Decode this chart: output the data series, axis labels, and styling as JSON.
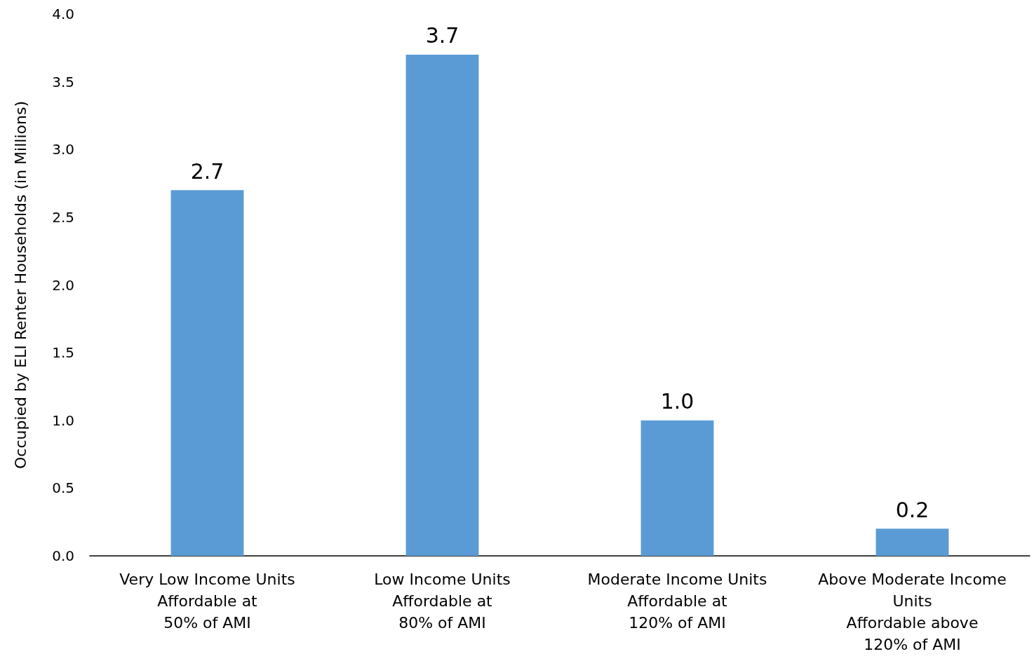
{
  "chart_data": {
    "type": "bar",
    "ylabel": "Occupied by ELI Renter Households (in Millions)",
    "categories": [
      "Very Low Income Units\nAffordable at\n50% of AMI",
      "Low Income Units\nAffordable at\n80% of AMI",
      "Moderate Income Units\nAffordable at\n120% of AMI",
      "Above Moderate Income\nUnits\nAffordable above\n120% of AMI"
    ],
    "values": [
      2.7,
      3.7,
      1.0,
      0.2
    ],
    "color": "#5b9bd5",
    "value_labels": [
      "2.7",
      "3.7",
      "1.0",
      "0.2"
    ],
    "ylim": [
      0,
      4
    ],
    "yticks": [
      {
        "value": 0,
        "label": "0.0"
      },
      {
        "value": 0.5,
        "label": "0.5"
      },
      {
        "value": 1,
        "label": "1.0"
      },
      {
        "value": 1.5,
        "label": "1.5"
      },
      {
        "value": 2,
        "label": "2.0"
      },
      {
        "value": 2.5,
        "label": "2.5"
      },
      {
        "value": 3,
        "label": "3.0"
      },
      {
        "value": 3.5,
        "label": "3.5"
      },
      {
        "value": 4,
        "label": "4.0"
      }
    ],
    "grid": false
  }
}
